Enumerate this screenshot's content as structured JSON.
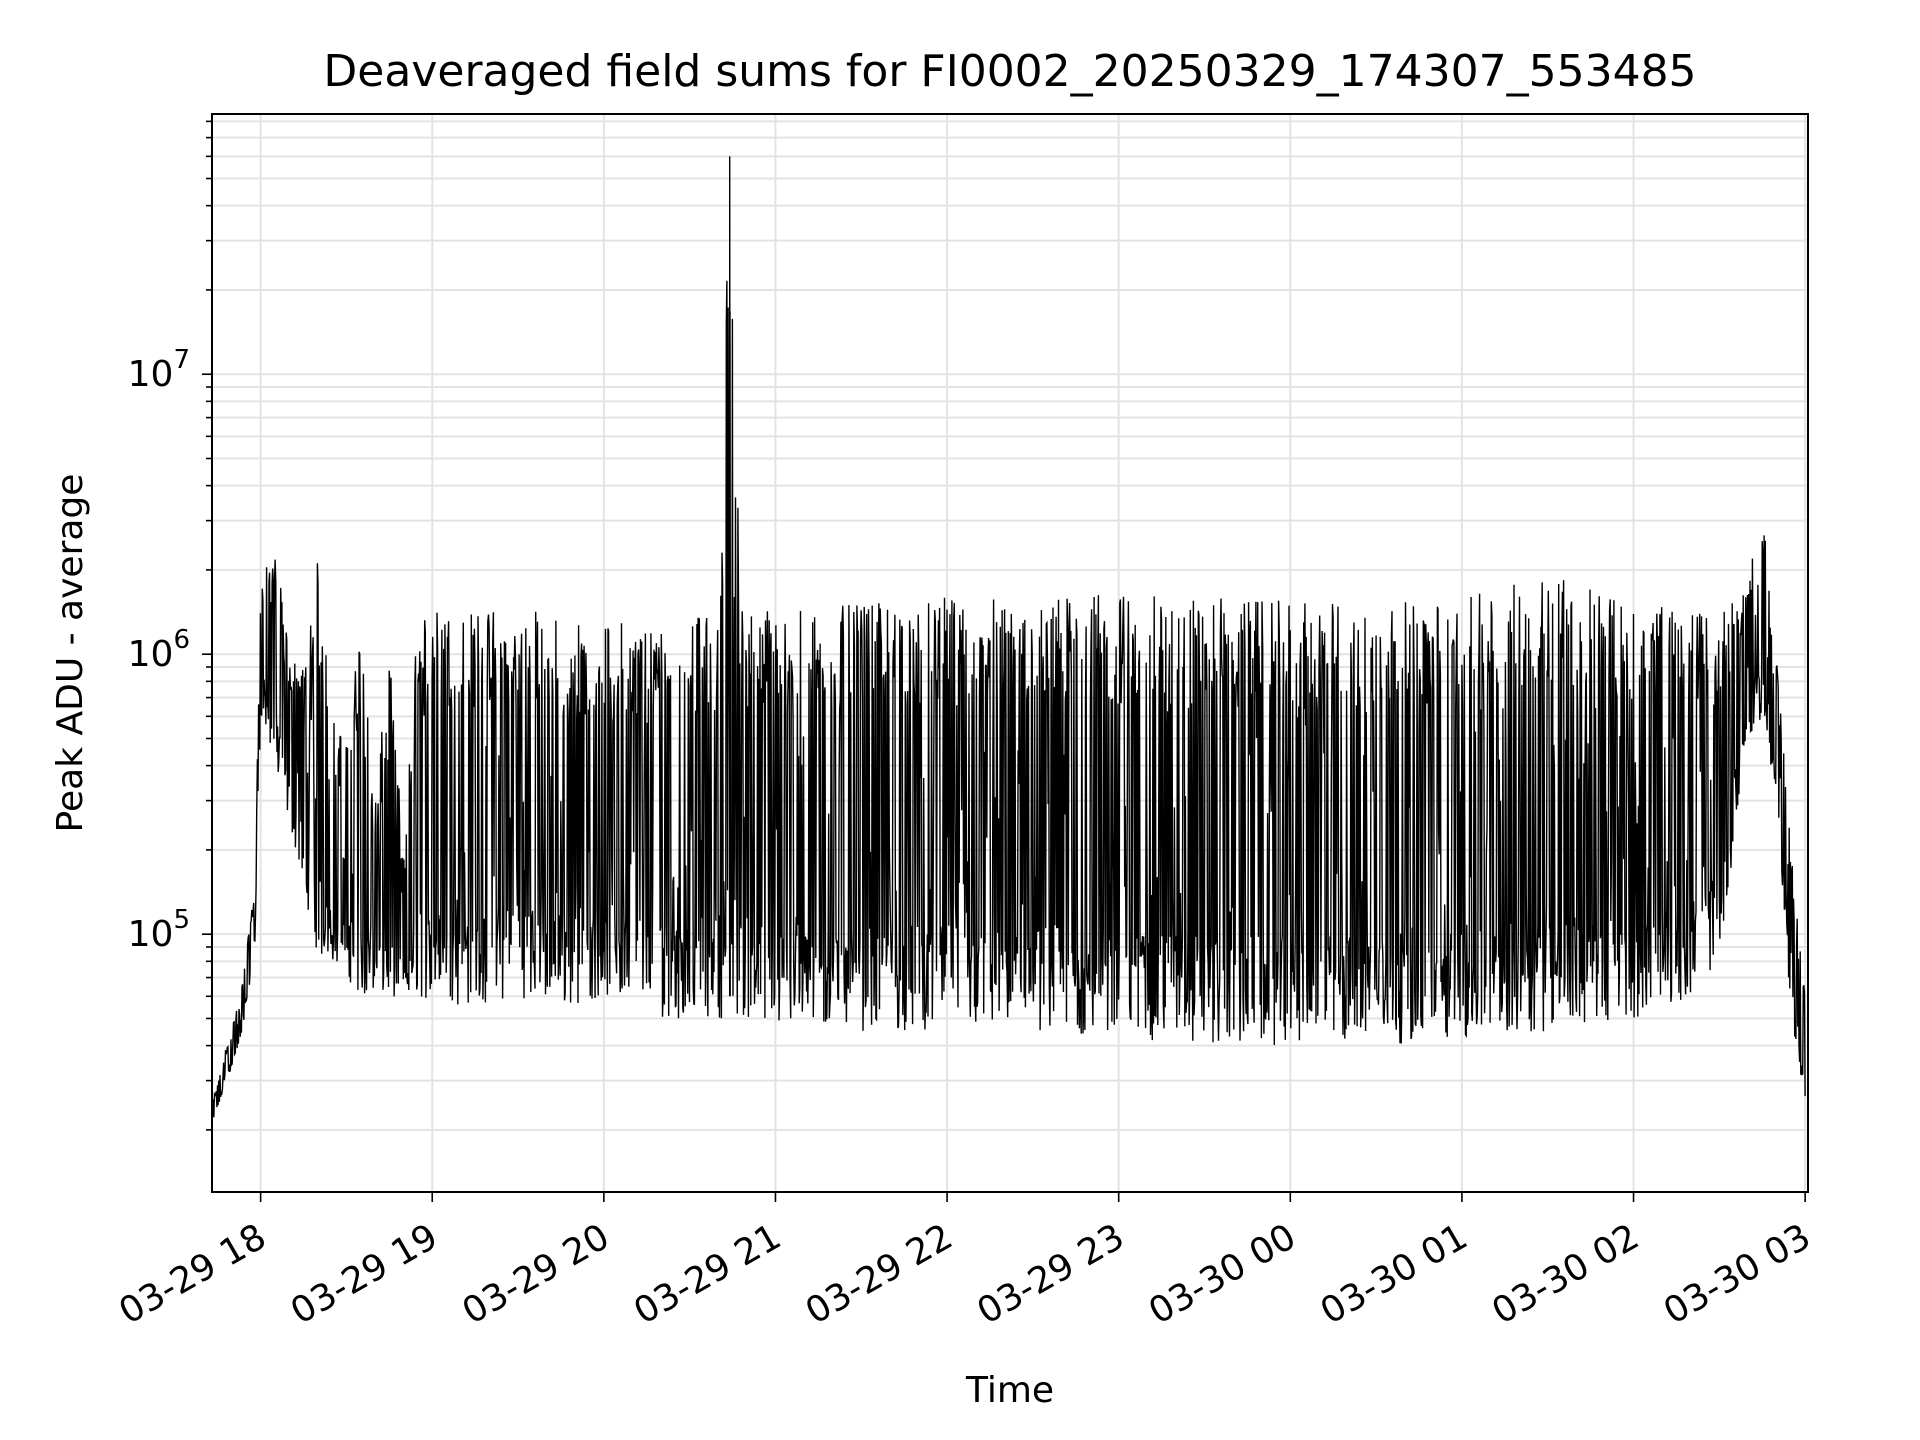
{
  "chart_data": {
    "type": "line",
    "title": "Deaveraged field sums for FI0002_20250329_174307_553485",
    "xlabel": "Time",
    "ylabel": "Peak ADU - average",
    "x_scale": "time",
    "y_scale": "log",
    "xlim": [
      "2025-03-29 17:43",
      "2025-03-30 03:01"
    ],
    "ylim": [
      12000,
      85000000
    ],
    "x_ticks": [
      "03-29 18",
      "03-29 19",
      "03-29 20",
      "03-29 21",
      "03-29 22",
      "03-29 23",
      "03-30 00",
      "03-30 01",
      "03-30 02",
      "03-30 03"
    ],
    "y_ticks": [
      {
        "base": "10",
        "exp": "5"
      },
      {
        "base": "10",
        "exp": "6"
      },
      {
        "base": "10",
        "exp": "7"
      }
    ],
    "grid": true,
    "line_color": "#000000",
    "series": [
      {
        "x": [
          "2025-03-29 17:43",
          "2025-03-29 17:48",
          "2025-03-29 17:53",
          "2025-03-29 17:58",
          "2025-03-29 18:00",
          "2025-03-29 18:05",
          "2025-03-29 18:10",
          "2025-03-29 18:15",
          "2025-03-29 18:20",
          "2025-03-29 18:25",
          "2025-03-29 18:30",
          "2025-03-29 18:35",
          "2025-03-29 18:40",
          "2025-03-29 18:45",
          "2025-03-29 18:50",
          "2025-03-29 18:55",
          "2025-03-29 19:00",
          "2025-03-29 19:10",
          "2025-03-29 19:20",
          "2025-03-29 19:30",
          "2025-03-29 19:40",
          "2025-03-29 19:50",
          "2025-03-29 20:00",
          "2025-03-29 20:10",
          "2025-03-29 20:20",
          "2025-03-29 20:30",
          "2025-03-29 20:40",
          "2025-03-29 20:44",
          "2025-03-29 20:48",
          "2025-03-29 21:00",
          "2025-03-29 21:30",
          "2025-03-29 22:00",
          "2025-03-29 22:30",
          "2025-03-29 23:00",
          "2025-03-29 23:30",
          "2025-03-30 00:00",
          "2025-03-30 00:30",
          "2025-03-30 01:00",
          "2025-03-30 01:30",
          "2025-03-30 02:00",
          "2025-03-30 02:20",
          "2025-03-30 02:30",
          "2025-03-30 02:40",
          "2025-03-30 02:45",
          "2025-03-30 02:50",
          "2025-03-30 02:55",
          "2025-03-30 03:00"
        ],
        "low": [
          20000,
          30000,
          40000,
          90000,
          600000,
          400000,
          250000,
          150000,
          80000,
          80000,
          70000,
          60000,
          55000,
          60000,
          55000,
          60000,
          55000,
          55000,
          55000,
          60000,
          55000,
          55000,
          60000,
          55000,
          50000,
          50000,
          50000,
          50000,
          50000,
          45000,
          45000,
          45000,
          45000,
          42000,
          40000,
          40000,
          40000,
          42000,
          45000,
          50000,
          60000,
          80000,
          500000,
          600000,
          300000,
          50000,
          25000
        ],
        "high": [
          25000,
          40000,
          60000,
          150000,
          1800000,
          2500000,
          1000000,
          900000,
          2200000,
          600000,
          500000,
          1300000,
          300000,
          1000000,
          200000,
          1400000,
          1500000,
          1400000,
          1500000,
          1400000,
          1500000,
          1300000,
          1300000,
          1350000,
          1400000,
          1400000,
          1400000,
          60000000,
          1500000,
          1500000,
          1500000,
          1600000,
          1600000,
          1650000,
          1600000,
          1550000,
          1550000,
          1550000,
          2100000,
          1500000,
          1450000,
          1400000,
          1800000,
          3400000,
          1000000,
          200000,
          60000
        ]
      }
    ]
  }
}
